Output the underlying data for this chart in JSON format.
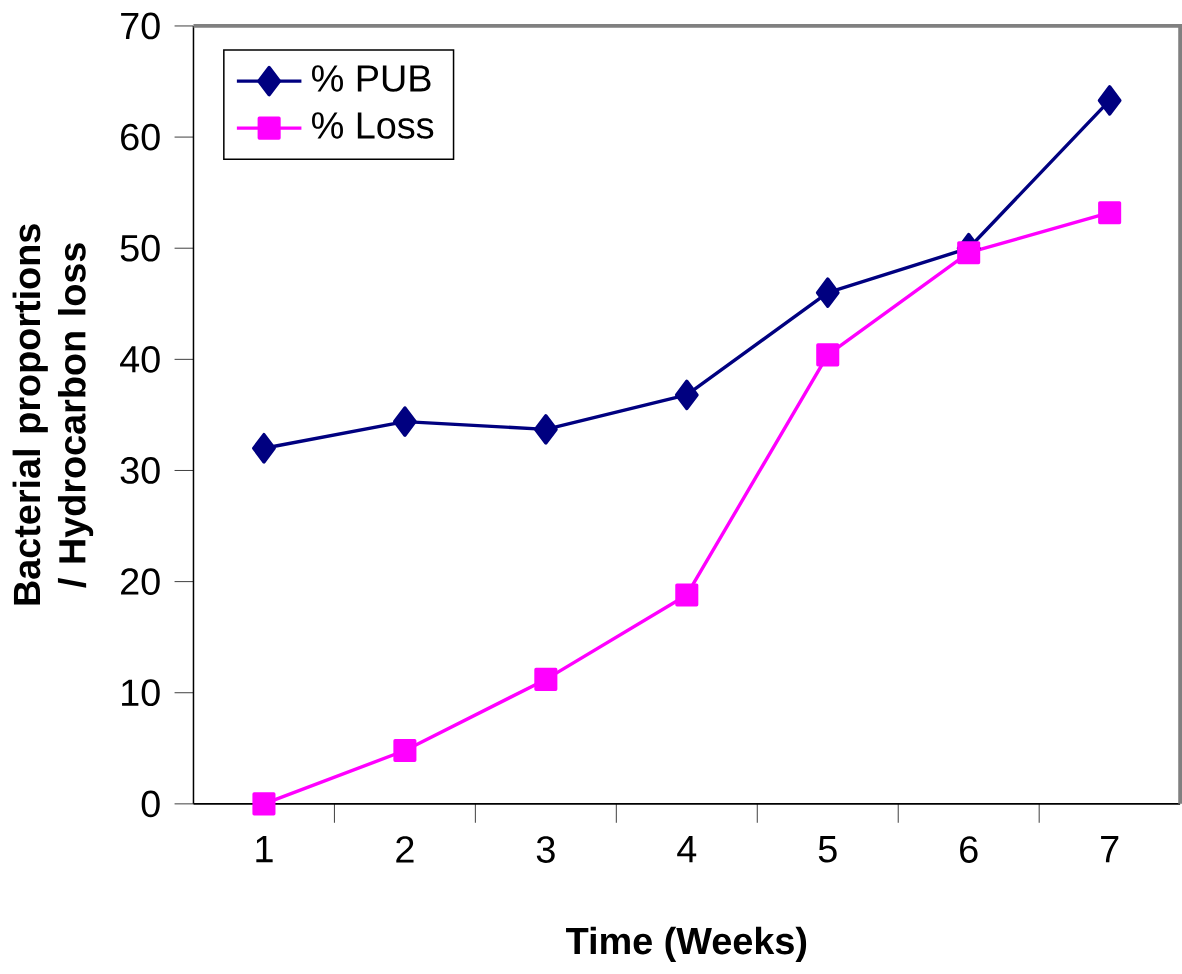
{
  "chart_data": {
    "type": "line",
    "xlabel": "Time (Weeks)",
    "ylabel": "Bacterial proportions / Hydrocarbon loss",
    "categories": [
      "1",
      "2",
      "3",
      "4",
      "5",
      "6",
      "7"
    ],
    "series": [
      {
        "name": "% PUB",
        "color": "#000080",
        "marker": "diamond",
        "values": [
          32,
          34.4,
          33.7,
          36.8,
          46,
          50,
          63.3
        ]
      },
      {
        "name": "% Loss",
        "color": "#ff00ff",
        "marker": "square",
        "values": [
          0,
          4.8,
          11.2,
          18.8,
          40.4,
          49.6,
          53.2
        ]
      }
    ],
    "ylim": [
      0,
      70
    ],
    "yticks": [
      0,
      10,
      20,
      30,
      40,
      50,
      60,
      70
    ],
    "grid": false,
    "legend": "top left",
    "line_style": "solid"
  }
}
